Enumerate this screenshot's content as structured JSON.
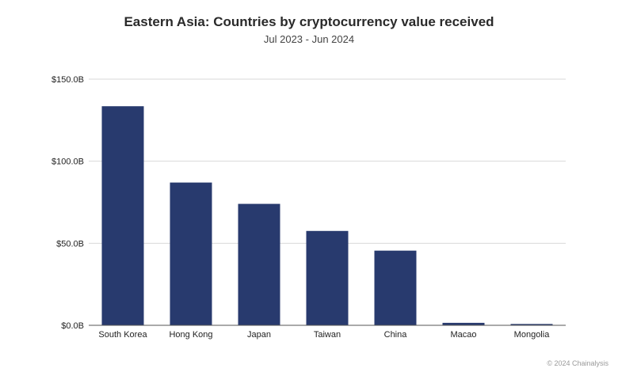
{
  "chart_data": {
    "type": "bar",
    "title": "Eastern Asia: Countries by cryptocurrency value received",
    "subtitle": "Jul 2023 - Jun 2024",
    "categories": [
      "South Korea",
      "Hong Kong",
      "Japan",
      "Taiwan",
      "China",
      "Macao",
      "Mongolia"
    ],
    "values": [
      133.5,
      87,
      74,
      57.5,
      45.5,
      1.5,
      0.8
    ],
    "unit": "B USD",
    "ylim": [
      0,
      150
    ],
    "yticks": [
      0,
      50,
      100,
      150
    ],
    "ytick_labels": [
      "$0.0B",
      "$50.0B",
      "$100.0B",
      "$150.0B"
    ],
    "xlabel": "",
    "ylabel": "",
    "grid": true,
    "bar_color": "#283a6e",
    "grid_color": "#d9d9d9"
  },
  "footer": {
    "credit": "© 2024 Chainalysis"
  }
}
